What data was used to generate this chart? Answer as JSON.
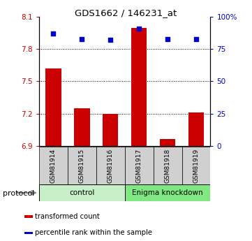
{
  "title": "GDS1662 / 146231_at",
  "samples": [
    "GSM81914",
    "GSM81915",
    "GSM81916",
    "GSM81917",
    "GSM81918",
    "GSM81919"
  ],
  "red_values": [
    7.62,
    7.25,
    7.2,
    8.0,
    6.96,
    7.21
  ],
  "blue_values": [
    87,
    83,
    82,
    91,
    83,
    83
  ],
  "y_min": 6.9,
  "y_max": 8.1,
  "y_ticks": [
    6.9,
    7.2,
    7.5,
    7.8,
    8.1
  ],
  "y_right_ticks": [
    0,
    25,
    50,
    75,
    100
  ],
  "y_right_labels": [
    "0",
    "25",
    "50",
    "75",
    "100%"
  ],
  "groups": [
    {
      "label": "control",
      "start": 0,
      "end": 3,
      "color": "#c8f0c8"
    },
    {
      "label": "Enigma knockdown",
      "start": 3,
      "end": 6,
      "color": "#80e880"
    }
  ],
  "bar_color": "#cc0000",
  "dot_color": "#0000cc",
  "bar_base": 6.9,
  "protocol_label": "protocol",
  "legend_items": [
    {
      "color": "#cc0000",
      "label": "transformed count"
    },
    {
      "color": "#0000cc",
      "label": "percentile rank within the sample"
    }
  ],
  "tick_label_color_left": "#cc0000",
  "tick_label_color_right": "#0000cc",
  "sample_box_color": "#d0d0d0",
  "bar_width": 0.55
}
